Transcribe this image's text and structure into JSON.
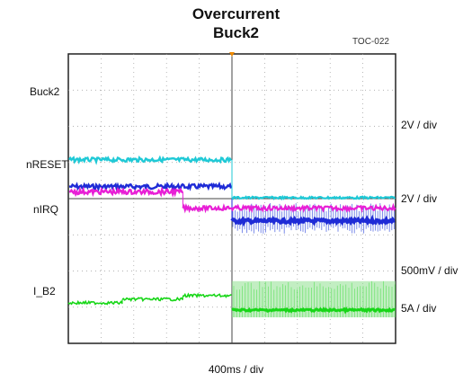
{
  "chart_data": {
    "type": "line",
    "title": "Overcurrent",
    "subtitle": "Buck2",
    "code": "TOC-022",
    "xlabel": "400ms / div",
    "x_divisions": 10,
    "y_divisions": 8,
    "x_event_div": 5.0,
    "x_event2_div": 3.5,
    "channels": [
      {
        "name": "Buck2",
        "scale": "2V / div",
        "color": "#1e2bd6",
        "noise_color": "#6d7fe6",
        "before_div": 1.55,
        "after_div": 0.6,
        "noise_before": 0.05,
        "band_after": 0.5
      },
      {
        "name": "nRESET",
        "scale": "2V / div",
        "color": "#1fc9d6",
        "noise_color": "#1fc9d6",
        "before_div": 1.05,
        "after_div": 0.0,
        "noise_before": 0.04,
        "band_after": 0.03
      },
      {
        "name": "nIRQ",
        "scale": "500mV / div",
        "color": "#e81fd6",
        "noise_color": "#e81fd6",
        "before_div": 2.1,
        "after_div": 1.65,
        "noise_before": 0.05,
        "band_after": 0.06
      },
      {
        "name": "I_B2",
        "scale": "5A / div",
        "color": "#17d617",
        "noise_color": "#8fe08f",
        "steps": [
          [
            0.0,
            0.2
          ],
          [
            1.65,
            0.3
          ],
          [
            3.5,
            0.4
          ],
          [
            5.0,
            0.0
          ]
        ],
        "noise_before": 0.04,
        "band_after": 0.8
      }
    ]
  }
}
